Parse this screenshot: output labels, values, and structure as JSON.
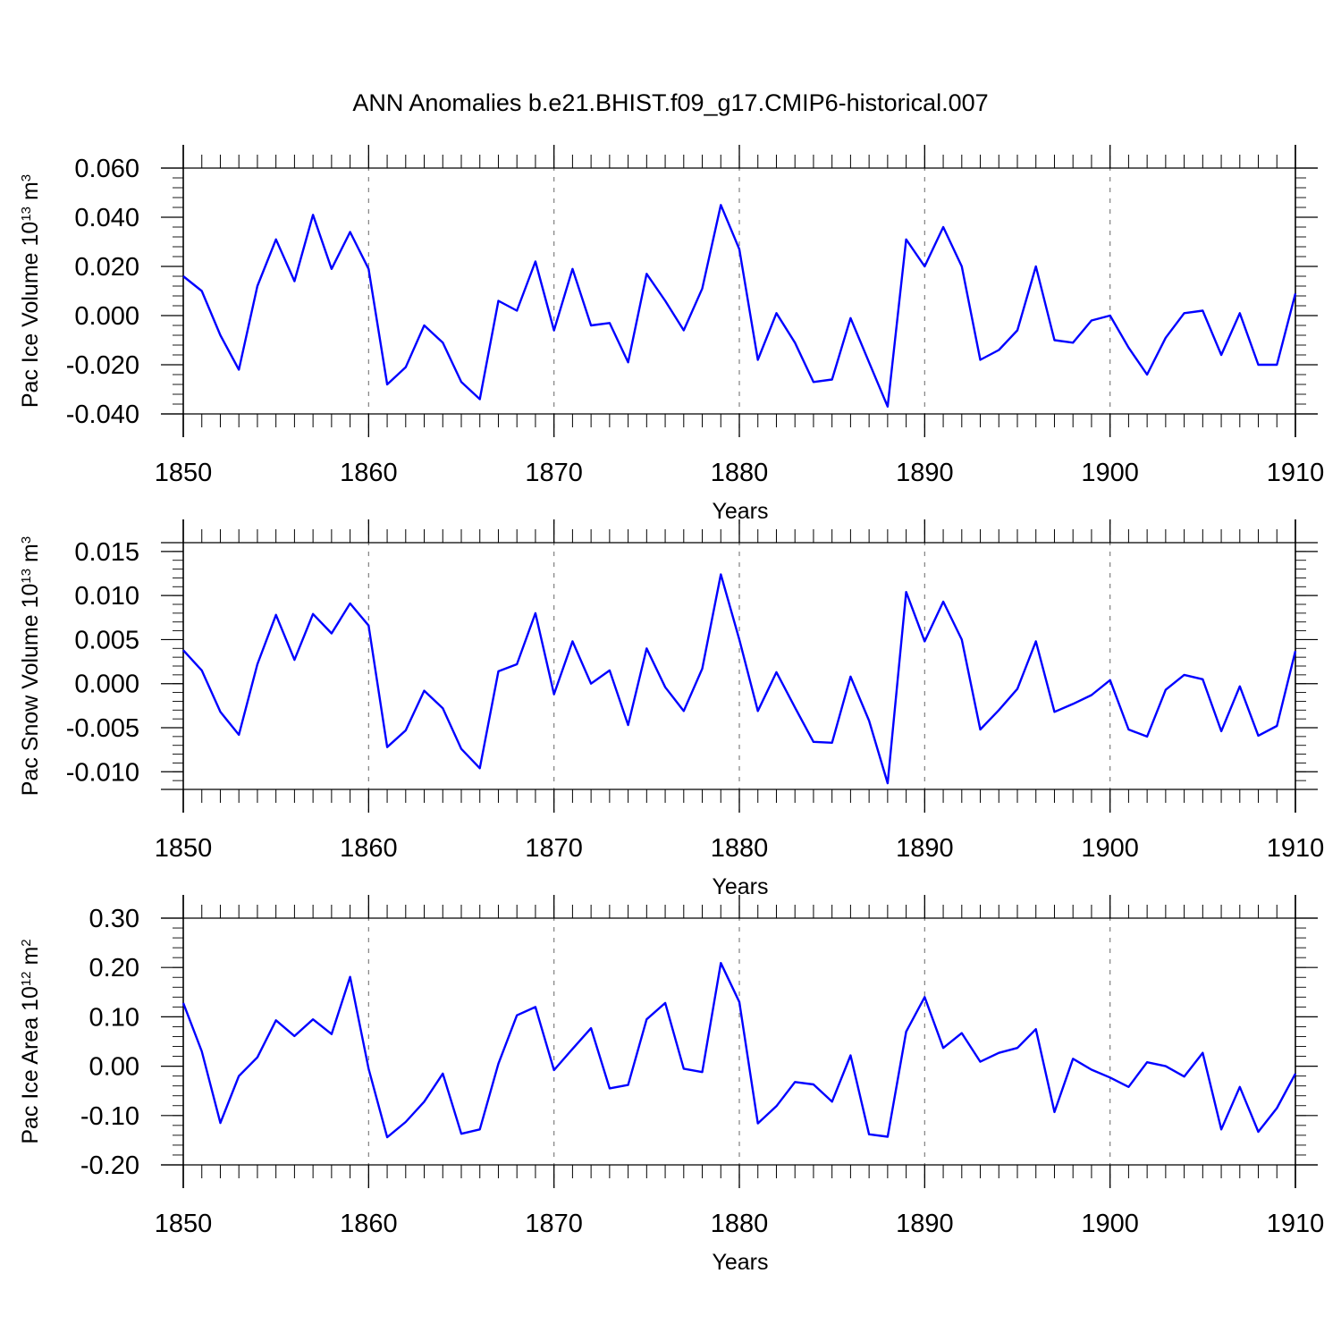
{
  "title": "ANN Anomalies b.e21.BHIST.f09_g17.CMIP6-historical.007",
  "colors": {
    "line": "#0000ff",
    "axis": "#000000",
    "grid": "#808080"
  },
  "chart_data": [
    {
      "type": "line",
      "xlabel": "Years",
      "ylabel": {
        "prefix": "Pac Ice Volume 10",
        "sup1": "13",
        "unit": " m",
        "sup2": "3"
      },
      "xlim": [
        1850,
        1910
      ],
      "ylim": [
        -0.04,
        0.06
      ],
      "xticks": [
        "1850",
        "1860",
        "1870",
        "1880",
        "1890",
        "1900",
        "1910"
      ],
      "yticks": [
        {
          "v": -0.04,
          "label": "-0.040"
        },
        {
          "v": -0.02,
          "label": "-0.020"
        },
        {
          "v": 0.0,
          "label": "0.000"
        },
        {
          "v": 0.02,
          "label": "0.020"
        },
        {
          "v": 0.04,
          "label": "0.040"
        },
        {
          "v": 0.06,
          "label": "0.060"
        }
      ],
      "x": [
        1850,
        1851,
        1852,
        1853,
        1854,
        1855,
        1856,
        1857,
        1858,
        1859,
        1860,
        1861,
        1862,
        1863,
        1864,
        1865,
        1866,
        1867,
        1868,
        1869,
        1870,
        1871,
        1872,
        1873,
        1874,
        1875,
        1876,
        1877,
        1878,
        1879,
        1880,
        1881,
        1882,
        1883,
        1884,
        1885,
        1886,
        1887,
        1888,
        1889,
        1890,
        1891,
        1892,
        1893,
        1894,
        1895,
        1896,
        1897,
        1898,
        1899,
        1900,
        1901,
        1902,
        1903,
        1904,
        1905,
        1906,
        1907,
        1908,
        1909,
        1910
      ],
      "series": [
        {
          "values": [
            0.016,
            0.01,
            -0.008,
            -0.022,
            0.012,
            0.031,
            0.014,
            0.041,
            0.019,
            0.034,
            0.019,
            -0.028,
            -0.021,
            -0.004,
            -0.011,
            -0.027,
            -0.034,
            0.006,
            0.002,
            0.022,
            -0.006,
            0.019,
            -0.004,
            -0.003,
            -0.019,
            0.017,
            0.006,
            -0.006,
            0.011,
            0.045,
            0.027,
            -0.018,
            0.001,
            -0.011,
            -0.027,
            -0.026,
            -0.001,
            -0.019,
            -0.037,
            0.031,
            0.02,
            0.036,
            0.02,
            -0.018,
            -0.014,
            -0.006,
            0.02,
            -0.01,
            -0.011,
            -0.002,
            0.0,
            -0.013,
            -0.024,
            -0.009,
            0.001,
            0.002,
            -0.016,
            0.001,
            -0.02,
            -0.02,
            0.009
          ]
        }
      ]
    },
    {
      "type": "line",
      "xlabel": "Years",
      "ylabel": {
        "prefix": "Pac Snow Volume 10",
        "sup1": "13",
        "unit": " m",
        "sup2": "3"
      },
      "xlim": [
        1850,
        1910
      ],
      "ylim": [
        -0.012,
        0.016
      ],
      "xticks": [
        "1850",
        "1860",
        "1870",
        "1880",
        "1890",
        "1900",
        "1910"
      ],
      "yticks": [
        {
          "v": -0.01,
          "label": "-0.010"
        },
        {
          "v": -0.005,
          "label": "-0.005"
        },
        {
          "v": 0.0,
          "label": "0.000"
        },
        {
          "v": 0.005,
          "label": "0.005"
        },
        {
          "v": 0.01,
          "label": "0.010"
        },
        {
          "v": 0.015,
          "label": "0.015"
        }
      ],
      "x": [
        1850,
        1851,
        1852,
        1853,
        1854,
        1855,
        1856,
        1857,
        1858,
        1859,
        1860,
        1861,
        1862,
        1863,
        1864,
        1865,
        1866,
        1867,
        1868,
        1869,
        1870,
        1871,
        1872,
        1873,
        1874,
        1875,
        1876,
        1877,
        1878,
        1879,
        1880,
        1881,
        1882,
        1883,
        1884,
        1885,
        1886,
        1887,
        1888,
        1889,
        1890,
        1891,
        1892,
        1893,
        1894,
        1895,
        1896,
        1897,
        1898,
        1899,
        1900,
        1901,
        1902,
        1903,
        1904,
        1905,
        1906,
        1907,
        1908,
        1909,
        1910
      ],
      "series": [
        {
          "values": [
            0.0038,
            0.0015,
            -0.0032,
            -0.0058,
            0.0022,
            0.0078,
            0.0027,
            0.0079,
            0.0057,
            0.0091,
            0.0066,
            -0.0072,
            -0.0053,
            -0.0008,
            -0.0028,
            -0.0074,
            -0.0096,
            0.0014,
            0.0022,
            0.008,
            -0.0012,
            0.0048,
            0.0,
            0.0015,
            -0.0047,
            0.004,
            -0.0004,
            -0.0031,
            0.0017,
            0.0124,
            0.005,
            -0.0031,
            0.0013,
            -0.0027,
            -0.0066,
            -0.0067,
            0.0008,
            -0.0042,
            -0.0113,
            0.0104,
            0.0048,
            0.0093,
            0.005,
            -0.0052,
            -0.003,
            -0.0006,
            0.0048,
            -0.0032,
            -0.0023,
            -0.0013,
            0.0004,
            -0.0052,
            -0.006,
            -0.0007,
            0.001,
            0.0005,
            -0.0054,
            -0.0003,
            -0.0059,
            -0.0048,
            0.0037
          ]
        }
      ]
    },
    {
      "type": "line",
      "xlabel": "Years",
      "ylabel": {
        "prefix": "Pac Ice Area 10",
        "sup1": "12",
        "unit": " m",
        "sup2": "2"
      },
      "xlim": [
        1850,
        1910
      ],
      "ylim": [
        -0.2,
        0.3
      ],
      "xticks": [
        "1850",
        "1860",
        "1870",
        "1880",
        "1890",
        "1900",
        "1910"
      ],
      "yticks": [
        {
          "v": -0.2,
          "label": "-0.20"
        },
        {
          "v": -0.1,
          "label": "-0.10"
        },
        {
          "v": 0.0,
          "label": "0.00"
        },
        {
          "v": 0.1,
          "label": "0.10"
        },
        {
          "v": 0.2,
          "label": "0.20"
        },
        {
          "v": 0.3,
          "label": "0.30"
        }
      ],
      "x": [
        1850,
        1851,
        1852,
        1853,
        1854,
        1855,
        1856,
        1857,
        1858,
        1859,
        1860,
        1861,
        1862,
        1863,
        1864,
        1865,
        1866,
        1867,
        1868,
        1869,
        1870,
        1871,
        1872,
        1873,
        1874,
        1875,
        1876,
        1877,
        1878,
        1879,
        1880,
        1881,
        1882,
        1883,
        1884,
        1885,
        1886,
        1887,
        1888,
        1889,
        1890,
        1891,
        1892,
        1893,
        1894,
        1895,
        1896,
        1897,
        1898,
        1899,
        1900,
        1901,
        1902,
        1903,
        1904,
        1905,
        1906,
        1907,
        1908,
        1909,
        1910
      ],
      "series": [
        {
          "values": [
            0.128,
            0.03,
            -0.115,
            -0.02,
            0.018,
            0.093,
            0.061,
            0.095,
            0.065,
            0.181,
            -0.005,
            -0.144,
            -0.113,
            -0.072,
            -0.015,
            -0.137,
            -0.128,
            0.005,
            0.103,
            0.12,
            -0.008,
            0.035,
            0.077,
            -0.045,
            -0.038,
            0.095,
            0.128,
            -0.005,
            -0.012,
            0.209,
            0.13,
            -0.116,
            -0.081,
            -0.032,
            -0.037,
            -0.072,
            0.022,
            -0.138,
            -0.143,
            0.07,
            0.14,
            0.037,
            0.067,
            0.009,
            0.027,
            0.037,
            0.075,
            -0.093,
            0.015,
            -0.007,
            -0.023,
            -0.042,
            0.008,
            0.0,
            -0.021,
            0.027,
            -0.128,
            -0.042,
            -0.133,
            -0.085,
            -0.015
          ]
        }
      ]
    }
  ]
}
